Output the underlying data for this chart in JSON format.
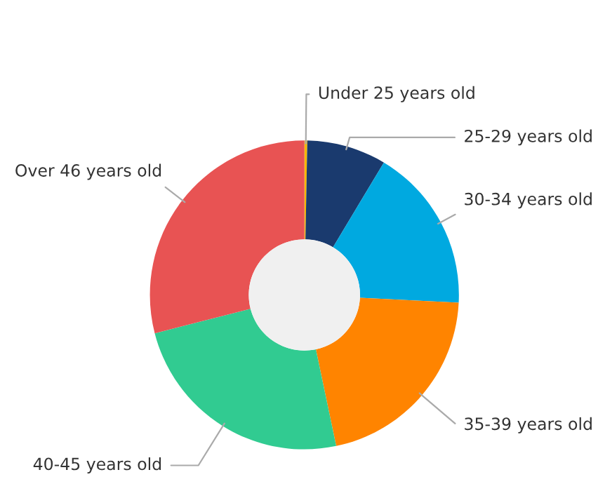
{
  "chart_data": {
    "type": "donut",
    "categories": [
      "Under 25 years old",
      "25-29 years old",
      "30-34 years old",
      "35-39 years old",
      "40-45 years old",
      "Over 46 years old"
    ],
    "values": [
      0.3,
      8.3,
      17.2,
      20.9,
      24.3,
      29.0
    ],
    "colors": [
      "#f5b800",
      "#1a3a6e",
      "#00a9e0",
      "#ff8400",
      "#31cb91",
      "#e85353"
    ]
  }
}
